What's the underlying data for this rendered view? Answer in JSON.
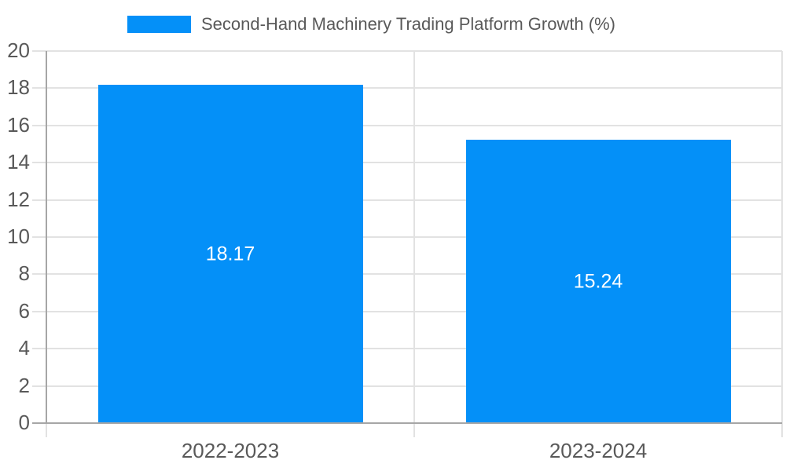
{
  "chart_data": {
    "type": "bar",
    "title": "Second-Hand Machinery Trading Platform Growth (%)",
    "categories": [
      "2022-2023",
      "2023-2024"
    ],
    "values": [
      18.17,
      15.24
    ],
    "value_labels": [
      "18.17",
      "15.24"
    ],
    "xlabel": "",
    "ylabel": "",
    "ylim": [
      0,
      20
    ],
    "ytick_step": 2,
    "ytick_labels": [
      "0",
      "2",
      "4",
      "6",
      "8",
      "10",
      "12",
      "14",
      "16",
      "18",
      "20"
    ],
    "grid": true,
    "legend": {
      "position": "top",
      "label": "Second-Hand Machinery Trading Platform Growth (%)"
    },
    "colors": {
      "bar": "#0490f8",
      "legend_swatch": "#0490f8",
      "text": "#595959",
      "value_label": "#ffffff",
      "grid": "#e2e2e2",
      "axis": "#a6a6a6",
      "background": "#ffffff"
    }
  }
}
